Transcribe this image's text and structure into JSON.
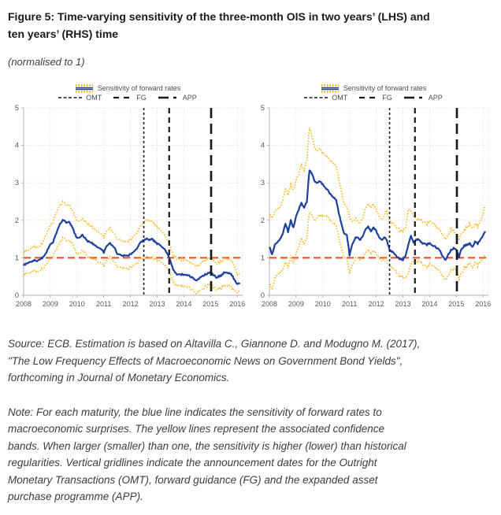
{
  "title": "Figure 5: Time-varying sensitivity of the three-month OIS in two years’ (LHS) and\nten years’ (RHS) time",
  "subtitle": "(normalised to 1)",
  "source_text": "Source: ECB. Estimation is based on Altavilla C., Giannone D. and Modugno M. (2017),\n\"The Low Frequency Effects of Macroeconomic News on Government Bond Yields\",\nforthcoming in Journal of Monetary Economics.",
  "note_text": "Note: For each maturity, the blue line indicates the sensitivity of forward rates to\nmacroeconomic surprises. The yellow lines represent the associated confidence\nbands. When larger (smaller) than one, the sensitivity is higher (lower) than historical\nregularities. Vertical gridlines indicate the announcement dates for the Outright\nMonetary Transactions (OMT), forward guidance (FG) and the expanded asset\npurchase programme (APP).",
  "legend": {
    "series_label": "Sensitivity of forward rates",
    "events": [
      "OMT",
      "FG",
      "APP"
    ]
  },
  "colors": {
    "blue": "#1E409E",
    "yellow": "#FDB414",
    "red": "#FF4514",
    "event": "#1A1A1A",
    "grid": "#DCDCDC",
    "axis": "#B3B3B3",
    "tick_text": "#595959",
    "legend_text": "#4D4D4D"
  },
  "chart_data": [
    {
      "type": "line",
      "panel": "LHS (three-month OIS in two years)",
      "xlim": [
        2008,
        2016.2
      ],
      "ylim": [
        0,
        5
      ],
      "x_ticks": [
        2008,
        2009,
        2010,
        2011,
        2012,
        2013,
        2014,
        2015,
        2016
      ],
      "y_ticks": [
        0,
        1,
        2,
        3,
        4,
        5
      ],
      "grid": true,
      "legend_position": "top",
      "reference_line_y": 1,
      "x_start": 2008.0,
      "x_step": 0.1,
      "series": [
        {
          "name": "Sensitivity of forward rates",
          "color": "blue",
          "values": [
            0.8,
            0.84,
            0.88,
            0.9,
            0.94,
            0.92,
            0.96,
            1.0,
            1.08,
            1.22,
            1.35,
            1.42,
            1.6,
            1.82,
            1.95,
            2.02,
            1.95,
            1.98,
            1.85,
            1.68,
            1.52,
            1.56,
            1.6,
            1.52,
            1.45,
            1.42,
            1.38,
            1.32,
            1.28,
            1.22,
            1.15,
            1.3,
            1.4,
            1.34,
            1.28,
            1.12,
            1.08,
            1.04,
            1.08,
            1.04,
            1.1,
            1.14,
            1.22,
            1.32,
            1.42,
            1.48,
            1.5,
            1.46,
            1.5,
            1.44,
            1.38,
            1.34,
            1.28,
            1.22,
            1.08,
            0.92,
            0.68,
            0.58,
            0.55,
            0.56,
            0.55,
            0.54,
            0.52,
            0.48,
            0.42,
            0.4,
            0.48,
            0.52,
            0.55,
            0.58,
            0.6,
            0.54,
            0.48,
            0.5,
            0.53,
            0.6,
            0.62,
            0.58,
            0.54,
            0.4,
            0.32,
            0.3
          ]
        },
        {
          "name": "upper confidence band",
          "color": "yellow",
          "values": [
            1.15,
            1.18,
            1.22,
            1.25,
            1.3,
            1.28,
            1.32,
            1.4,
            1.55,
            1.7,
            1.85,
            1.95,
            2.15,
            2.35,
            2.42,
            2.5,
            2.42,
            2.45,
            2.3,
            2.15,
            1.98,
            2.0,
            2.02,
            1.98,
            1.9,
            1.85,
            1.82,
            1.75,
            1.7,
            1.62,
            1.55,
            1.7,
            1.8,
            1.72,
            1.65,
            1.52,
            1.48,
            1.42,
            1.46,
            1.42,
            1.5,
            1.55,
            1.65,
            1.75,
            1.85,
            1.95,
            2.0,
            1.95,
            1.97,
            1.9,
            1.82,
            1.75,
            1.68,
            1.6,
            1.45,
            1.28,
            1.05,
            1.0,
            0.95,
            0.96,
            0.95,
            0.93,
            0.9,
            0.86,
            0.8,
            0.78,
            0.85,
            0.9,
            0.93,
            0.96,
            1.0,
            0.92,
            0.85,
            0.88,
            0.9,
            0.98,
            1.0,
            0.95,
            0.9,
            0.75,
            0.58,
            0.55
          ]
        },
        {
          "name": "lower confidence band",
          "color": "yellow",
          "values": [
            0.55,
            0.57,
            0.6,
            0.62,
            0.65,
            0.62,
            0.66,
            0.7,
            0.78,
            0.88,
            0.98,
            1.05,
            1.18,
            1.35,
            1.45,
            1.55,
            1.48,
            1.5,
            1.4,
            1.25,
            1.1,
            1.14,
            1.18,
            1.12,
            1.05,
            1.02,
            0.98,
            0.94,
            0.9,
            0.85,
            0.78,
            0.92,
            1.02,
            0.96,
            0.9,
            0.78,
            0.74,
            0.7,
            0.74,
            0.7,
            0.75,
            0.78,
            0.84,
            0.9,
            0.96,
            1.0,
            1.02,
            0.99,
            1.02,
            0.98,
            0.94,
            0.9,
            0.86,
            0.82,
            0.7,
            0.58,
            0.35,
            0.28,
            0.25,
            0.26,
            0.25,
            0.23,
            0.2,
            0.15,
            0.08,
            0.06,
            0.14,
            0.18,
            0.22,
            0.25,
            0.28,
            0.22,
            0.16,
            0.18,
            0.2,
            0.26,
            0.28,
            0.24,
            0.2,
            0.12,
            0.1,
            0.08
          ]
        }
      ],
      "events": [
        {
          "label": "OMT",
          "x": 2012.5
        },
        {
          "label": "FG",
          "x": 2013.45
        },
        {
          "label": "APP",
          "x": 2015.02
        }
      ]
    },
    {
      "type": "line",
      "panel": "RHS (three-month OIS in ten years)",
      "xlim": [
        2008,
        2016.2
      ],
      "ylim": [
        0,
        5
      ],
      "x_ticks": [
        2008,
        2009,
        2010,
        2011,
        2012,
        2013,
        2014,
        2015,
        2016
      ],
      "y_ticks": [
        0,
        1,
        2,
        3,
        4,
        5
      ],
      "grid": true,
      "legend_position": "top",
      "reference_line_y": 1,
      "x_start": 2008.0,
      "x_step": 0.1,
      "series": [
        {
          "name": "Sensitivity of forward rates",
          "color": "blue",
          "values": [
            1.3,
            1.08,
            1.35,
            1.42,
            1.5,
            1.65,
            1.92,
            1.7,
            2.0,
            1.8,
            2.1,
            2.3,
            2.45,
            2.35,
            2.5,
            3.35,
            3.25,
            3.05,
            3.0,
            3.05,
            2.95,
            2.88,
            2.78,
            2.68,
            2.62,
            2.55,
            2.2,
            1.9,
            1.65,
            1.6,
            1.08,
            1.35,
            1.52,
            1.55,
            1.48,
            1.6,
            1.75,
            1.82,
            1.72,
            1.8,
            1.72,
            1.55,
            1.48,
            1.55,
            1.45,
            1.22,
            1.15,
            1.08,
            1.0,
            0.97,
            0.95,
            1.05,
            1.35,
            1.6,
            1.4,
            1.5,
            1.48,
            1.4,
            1.38,
            1.35,
            1.4,
            1.32,
            1.3,
            1.25,
            1.18,
            1.02,
            0.95,
            1.1,
            1.2,
            1.25,
            1.2,
            1.02,
            1.25,
            1.32,
            1.35,
            1.38,
            1.3,
            1.42,
            1.38,
            1.48,
            1.62,
            1.7
          ]
        },
        {
          "name": "upper confidence band",
          "color": "yellow",
          "values": [
            2.15,
            2.05,
            2.25,
            2.3,
            2.35,
            2.55,
            2.85,
            2.7,
            2.95,
            2.8,
            3.05,
            3.25,
            3.45,
            3.35,
            3.6,
            4.5,
            4.25,
            3.95,
            3.85,
            3.9,
            3.8,
            3.75,
            3.65,
            3.58,
            3.55,
            3.45,
            3.1,
            2.75,
            2.45,
            2.35,
            2.1,
            1.95,
            2.05,
            1.98,
            1.92,
            2.1,
            2.3,
            2.42,
            2.35,
            2.42,
            2.3,
            2.1,
            2.02,
            2.12,
            2.25,
            2.0,
            1.92,
            1.85,
            1.78,
            1.72,
            1.7,
            1.8,
            2.3,
            2.28,
            2.1,
            2.05,
            2.02,
            1.98,
            1.95,
            1.92,
            2.0,
            1.92,
            1.88,
            1.8,
            1.72,
            1.6,
            1.5,
            1.62,
            1.75,
            1.7,
            1.6,
            1.48,
            1.65,
            1.75,
            1.82,
            1.9,
            1.8,
            1.88,
            1.85,
            1.98,
            2.2,
            2.4
          ]
        },
        {
          "name": "lower confidence band",
          "color": "yellow",
          "values": [
            0.3,
            0.15,
            0.45,
            0.55,
            0.6,
            0.68,
            0.9,
            0.75,
            1.05,
            0.85,
            1.1,
            1.3,
            1.5,
            1.4,
            1.55,
            2.25,
            2.15,
            2.0,
            2.1,
            2.15,
            2.1,
            2.15,
            2.08,
            1.98,
            1.92,
            1.85,
            1.55,
            1.25,
            1.02,
            0.98,
            0.6,
            0.8,
            0.95,
            1.0,
            0.95,
            1.02,
            1.12,
            1.2,
            1.12,
            1.18,
            1.12,
            0.98,
            0.92,
            0.98,
            0.92,
            0.78,
            0.72,
            0.65,
            0.58,
            0.52,
            0.48,
            0.45,
            0.6,
            0.85,
            0.92,
            0.9,
            0.92,
            0.85,
            0.8,
            0.75,
            0.85,
            0.78,
            0.75,
            0.7,
            0.62,
            0.5,
            0.42,
            0.55,
            0.65,
            0.7,
            0.65,
            0.4,
            0.62,
            0.72,
            0.78,
            0.85,
            0.75,
            0.85,
            0.8,
            0.9,
            1.0,
            1.05
          ]
        }
      ],
      "events": [
        {
          "label": "OMT",
          "x": 2012.5
        },
        {
          "label": "FG",
          "x": 2013.45
        },
        {
          "label": "APP",
          "x": 2015.02
        }
      ]
    }
  ]
}
